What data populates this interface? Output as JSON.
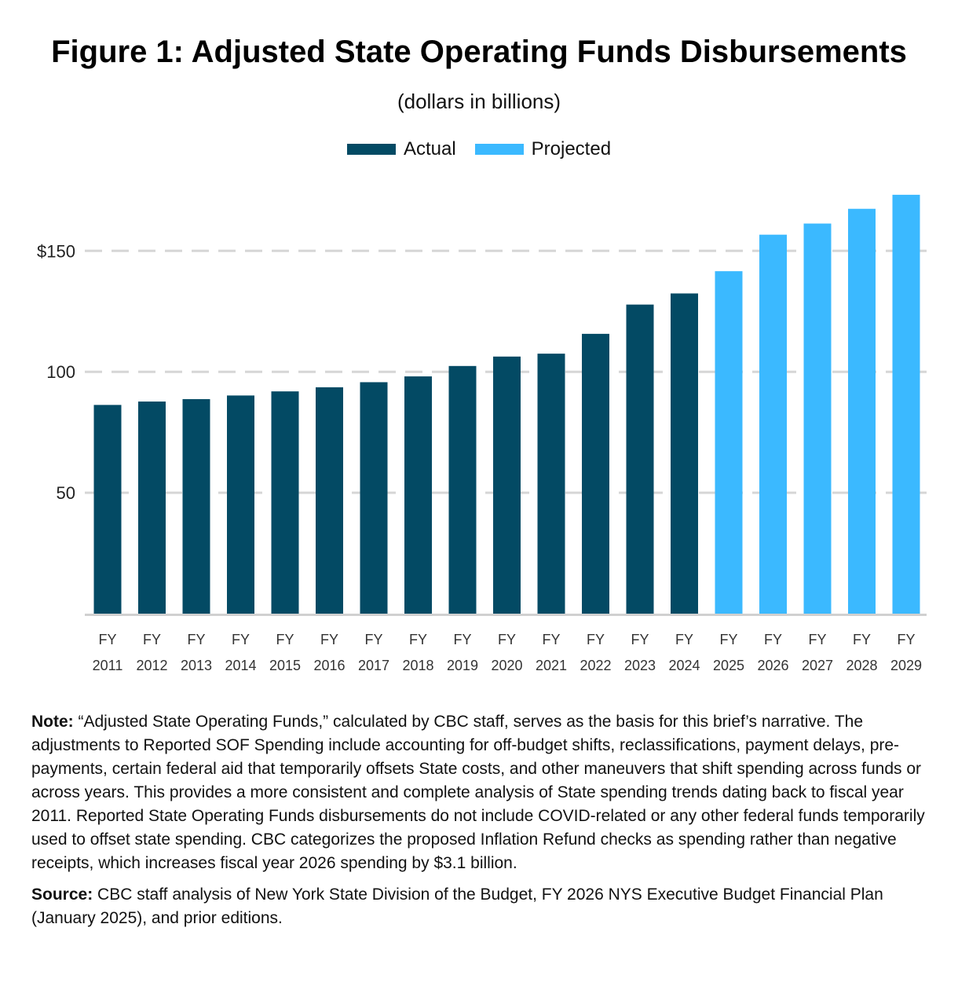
{
  "title": "Figure 1: Adjusted State Operating Funds Disbursements",
  "subtitle": "(dollars in billions)",
  "legend": [
    {
      "label": "Actual",
      "color": "#034a64"
    },
    {
      "label": "Projected",
      "color": "#3bb9ff"
    }
  ],
  "chart_data": {
    "type": "bar",
    "categories": [
      [
        "FY",
        "2011"
      ],
      [
        "FY",
        "2012"
      ],
      [
        "FY",
        "2013"
      ],
      [
        "FY",
        "2014"
      ],
      [
        "FY",
        "2015"
      ],
      [
        "FY",
        "2016"
      ],
      [
        "FY",
        "2017"
      ],
      [
        "FY",
        "2018"
      ],
      [
        "FY",
        "2019"
      ],
      [
        "FY",
        "2020"
      ],
      [
        "FY",
        "2021"
      ],
      [
        "FY",
        "2022"
      ],
      [
        "FY",
        "2023"
      ],
      [
        "FY",
        "2024"
      ],
      [
        "FY",
        "2025"
      ],
      [
        "FY",
        "2026"
      ],
      [
        "FY",
        "2027"
      ],
      [
        "FY",
        "2028"
      ],
      [
        "FY",
        "2029"
      ]
    ],
    "values": [
      86.3,
      87.7,
      88.7,
      90.2,
      91.9,
      93.6,
      95.7,
      98.1,
      102.4,
      106.3,
      107.5,
      115.7,
      127.8,
      132.4,
      141.6,
      156.7,
      161.3,
      167.4,
      173.2
    ],
    "status": [
      "Actual",
      "Actual",
      "Actual",
      "Actual",
      "Actual",
      "Actual",
      "Actual",
      "Actual",
      "Actual",
      "Actual",
      "Actual",
      "Actual",
      "Actual",
      "Actual",
      "Projected",
      "Projected",
      "Projected",
      "Projected",
      "Projected"
    ],
    "ylim": [
      0,
      180
    ],
    "yticks": [
      50,
      100,
      150
    ],
    "ytick_labels": [
      "50",
      "100",
      "$150"
    ],
    "grid": true,
    "legend_position": "top-center"
  },
  "notes": {
    "note_label": "Note:",
    "note_text": " “Adjusted State Operating Funds,” calculated by CBC staff, serves as the basis for this brief’s narrative. The adjustments to Reported SOF Spending include accounting for off-budget shifts, reclassifications, payment delays, pre-payments, certain federal aid that temporarily offsets State costs, and other maneuvers that shift spending across funds or across years. This provides a more consistent and complete analysis of State spending trends dating back to fiscal year 2011. Reported State Operating Funds disbursements do not include COVID-related or any other federal funds temporarily used to offset state spending. CBC categorizes the proposed Inflation Refund checks as spending rather than negative receipts, which increases fiscal year 2026 spending by $3.1 billion.",
    "source_label": "Source:",
    "source_text": " CBC staff analysis of New York State Division of the Budget, FY 2026 NYS Executive Budget Financial Plan (January 2025), and prior editions."
  }
}
